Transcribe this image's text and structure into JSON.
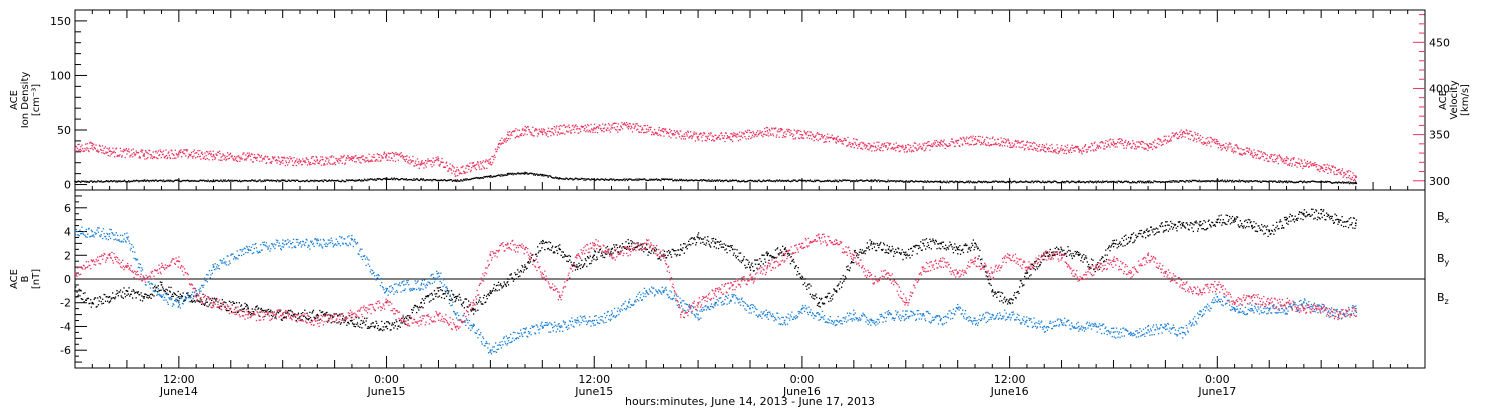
{
  "colors": {
    "black": "#000000",
    "density": "#000000",
    "velocity": "#e8355f",
    "bx": "#000000",
    "by": "#1a7fd6",
    "bz": "#e8355f"
  },
  "xaxis": {
    "title": "hours:minutes, June 14, 2013 - June 17, 2013",
    "ticks": [
      {
        "hour": 12,
        "line1": "12:00",
        "line2": "June14"
      },
      {
        "hour": 24,
        "line1": "0:00",
        "line2": "June15"
      },
      {
        "hour": 36,
        "line1": "12:00",
        "line2": "June15"
      },
      {
        "hour": 48,
        "line1": "0:00",
        "line2": "June16"
      },
      {
        "hour": 60,
        "line1": "12:00",
        "line2": "June16"
      },
      {
        "hour": 72,
        "line1": "0:00",
        "line2": "June17"
      }
    ]
  },
  "chart_data": [
    {
      "type": "scatter",
      "panel": "top",
      "ylabel_left": [
        "ACE",
        "Ion Density",
        "[cm⁻³]"
      ],
      "ylabel_right": [
        "ACE",
        "Velocity",
        "[km/s]"
      ],
      "x_unit": "hours since June 14, 2013 00:00",
      "xlim": [
        6,
        84
      ],
      "ylim_left": [
        -5,
        160
      ],
      "ylim_right": [
        290,
        485
      ],
      "yticks_left": [
        0,
        50,
        100,
        150
      ],
      "yticks_right": [
        300,
        350,
        400,
        450
      ],
      "series": [
        {
          "key": "density",
          "axis": "left",
          "x": [
            6,
            10,
            14,
            18,
            22,
            24,
            26,
            28,
            30,
            31,
            32,
            33,
            34,
            36,
            40,
            44,
            48,
            52,
            56,
            60,
            64,
            68,
            72,
            76,
            78,
            80
          ],
          "y": [
            3,
            4,
            4,
            4,
            4,
            6,
            5,
            4,
            8,
            10,
            11,
            9,
            6,
            5,
            5,
            4,
            4,
            4,
            3,
            3,
            3,
            3,
            4,
            3,
            3,
            2
          ]
        },
        {
          "key": "velocity",
          "axis": "right",
          "x": [
            6,
            7,
            8,
            10,
            12,
            14,
            16,
            18,
            20,
            22,
            24,
            25,
            26,
            27,
            28,
            29,
            30,
            30.5,
            31,
            32,
            33,
            34,
            36,
            38,
            40,
            42,
            44,
            46,
            48,
            50,
            52,
            54,
            56,
            58,
            60,
            62,
            64,
            66,
            68,
            70,
            72,
            74,
            76,
            78,
            80
          ],
          "y": [
            335,
            338,
            332,
            329,
            330,
            328,
            326,
            322,
            322,
            324,
            327,
            326,
            318,
            322,
            310,
            316,
            320,
            340,
            350,
            355,
            352,
            356,
            357,
            359,
            353,
            348,
            348,
            354,
            350,
            345,
            338,
            336,
            340,
            345,
            341,
            336,
            334,
            342,
            338,
            352,
            340,
            330,
            322,
            315,
            305
          ]
        }
      ]
    },
    {
      "type": "scatter",
      "panel": "bottom",
      "ylabel_left": [
        "ACE",
        "B",
        "[nT]"
      ],
      "x_unit": "hours since June 14, 2013 00:00",
      "xlim": [
        6,
        84
      ],
      "ylim": [
        -7.5,
        7.5
      ],
      "yticks": [
        -6,
        -4,
        -2,
        0,
        2,
        4,
        6
      ],
      "legend": [
        "Bx",
        "By",
        "Bz"
      ],
      "series": [
        {
          "key": "bx",
          "name": "Bx",
          "x": [
            6,
            7,
            8,
            9,
            10,
            11,
            12,
            13,
            14,
            16,
            18,
            20,
            22,
            24,
            25,
            26,
            27,
            28,
            29,
            30,
            31,
            32,
            33,
            34,
            35,
            36,
            37,
            38,
            39,
            40,
            41,
            42,
            43,
            44,
            45,
            46,
            47,
            48,
            49,
            50,
            51,
            52,
            53,
            54,
            55,
            56,
            57,
            58,
            59,
            60,
            61,
            62,
            63,
            64,
            65,
            66,
            67,
            68,
            69,
            70,
            71,
            72,
            73,
            74,
            75,
            76,
            77,
            78,
            79,
            80
          ],
          "y": [
            -1,
            -2,
            -1.5,
            -1,
            -1.5,
            -0.5,
            -1.5,
            -1.5,
            -2,
            -2.5,
            -3,
            -3,
            -3.5,
            -4,
            -3.5,
            -2,
            -1,
            -1.5,
            -2.5,
            -1,
            0,
            1,
            3,
            2.5,
            1,
            2,
            2.5,
            3,
            2.5,
            2,
            2.5,
            3.5,
            3,
            2.5,
            1,
            2,
            2.5,
            0,
            -2,
            -1,
            2,
            3,
            2.5,
            2,
            3,
            3,
            2.5,
            3,
            -1,
            -2,
            0.5,
            2,
            2.5,
            2,
            1,
            3,
            3.5,
            4,
            4.5,
            4.5,
            4.5,
            5,
            5,
            4.5,
            4,
            5,
            5.5,
            5.5,
            5,
            4.7
          ]
        },
        {
          "key": "by",
          "name": "By",
          "x": [
            6,
            7,
            8,
            9,
            10,
            11,
            12,
            13,
            14,
            16,
            18,
            20,
            22,
            24,
            25,
            26,
            27,
            28,
            29,
            30,
            31,
            32,
            33,
            34,
            35,
            36,
            37,
            38,
            39,
            40,
            41,
            42,
            43,
            44,
            45,
            46,
            47,
            48,
            49,
            50,
            51,
            52,
            53,
            54,
            55,
            56,
            57,
            58,
            59,
            60,
            61,
            62,
            63,
            64,
            65,
            66,
            67,
            68,
            69,
            70,
            71,
            72,
            73,
            74,
            75,
            76,
            77,
            78,
            79,
            80
          ],
          "y": [
            4,
            4,
            3.8,
            3.5,
            0,
            -1.5,
            -2,
            -1,
            1,
            2.5,
            3,
            3,
            3.3,
            -1,
            -0.5,
            -0.5,
            0.5,
            -3,
            -4,
            -6,
            -5,
            -4.5,
            -4,
            -4,
            -3.5,
            -3.5,
            -3,
            -2,
            -1,
            -1,
            -2,
            -3,
            -2,
            -1.5,
            -2.5,
            -3,
            -3.5,
            -2.5,
            -3,
            -3.5,
            -3,
            -3.5,
            -3,
            -3,
            -3,
            -3.5,
            -2.5,
            -3.5,
            -3,
            -3,
            -3.5,
            -4,
            -3.5,
            -4,
            -4,
            -4.5,
            -4.5,
            -4.3,
            -4,
            -4.5,
            -3,
            -1.5,
            -2.5,
            -2.5,
            -2.5,
            -2.5,
            -2,
            -2.5,
            -3,
            -2.5
          ]
        },
        {
          "key": "bz",
          "name": "Bz",
          "x": [
            6,
            7,
            8,
            9,
            10,
            11,
            12,
            13,
            14,
            16,
            18,
            20,
            22,
            24,
            25,
            26,
            27,
            28,
            29,
            30,
            31,
            32,
            33,
            34,
            35,
            36,
            37,
            38,
            39,
            40,
            41,
            42,
            43,
            44,
            45,
            46,
            47,
            48,
            49,
            50,
            51,
            52,
            53,
            54,
            55,
            56,
            57,
            58,
            59,
            60,
            61,
            62,
            63,
            64,
            65,
            66,
            67,
            68,
            69,
            70,
            71,
            72,
            73,
            74,
            75,
            76,
            77,
            78,
            79,
            80
          ],
          "y": [
            0.5,
            1.5,
            2,
            1,
            0,
            1,
            1.5,
            -1.5,
            -2,
            -3,
            -3,
            -3.5,
            -3,
            -2,
            -3.5,
            -3.5,
            -3,
            -4,
            -2,
            2,
            3,
            2.5,
            0.5,
            -1.5,
            2,
            3,
            2,
            2.5,
            3,
            2,
            -3,
            -2,
            -1,
            -0.5,
            0,
            1,
            2,
            3,
            3.5,
            3,
            2,
            0,
            0.5,
            -2,
            1,
            1.5,
            0.5,
            1.5,
            0.5,
            2,
            1,
            2,
            2,
            0,
            1,
            1.5,
            0.5,
            2,
            0.5,
            -0.5,
            -1,
            -0.5,
            -2,
            -1.5,
            -2,
            -2,
            -2.5,
            -2.5,
            -3,
            -2.7
          ]
        }
      ]
    }
  ]
}
